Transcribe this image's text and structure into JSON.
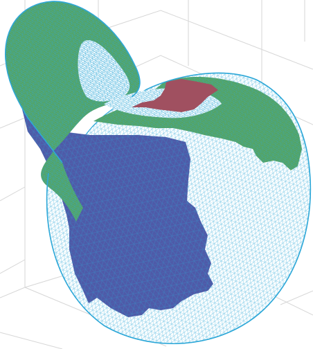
{
  "figure": {
    "type": "3d-triangulated-surface",
    "background": "#ffffff",
    "grid_color": "#d6d6d6",
    "mesh_color": "#2ea8d8",
    "regions": [
      {
        "name": "region-blue",
        "color": "#4f5aa8"
      },
      {
        "name": "region-green",
        "color": "#58a45a"
      },
      {
        "name": "region-red",
        "color": "#a05060"
      }
    ]
  }
}
